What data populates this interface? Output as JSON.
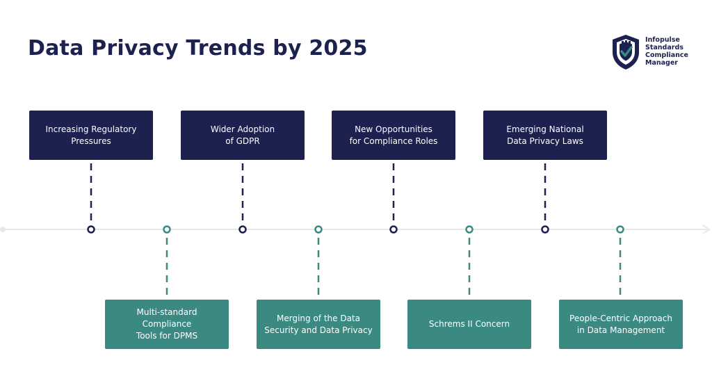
{
  "title": "Data Privacy Trends by 2025",
  "logo": {
    "icon": "shield-check-icon",
    "lines": [
      "Infopulse",
      "Standards",
      "Compliance",
      "Manager"
    ]
  },
  "colors": {
    "navy": "#1c2150",
    "teal": "#3b8a82",
    "axis": "#e6e9ec"
  },
  "top_items": [
    {
      "line1": "Increasing Regulatory",
      "line2": "Pressures"
    },
    {
      "line1": "Wider Adoption",
      "line2": "of GDPR"
    },
    {
      "line1": "New Opportunities",
      "line2": "for Compliance Roles"
    },
    {
      "line1": "Emerging National",
      "line2": "Data Privacy Laws"
    }
  ],
  "bottom_items": [
    {
      "line1": "Multi-standard Compliance",
      "line2": "Tools for DPMS"
    },
    {
      "line1": "Merging of the Data",
      "line2": "Security and Data Privacy"
    },
    {
      "line1": "Schrems II Concern",
      "line2": ""
    },
    {
      "line1": "People-Centric Approach",
      "line2": "in Data Management"
    }
  ]
}
